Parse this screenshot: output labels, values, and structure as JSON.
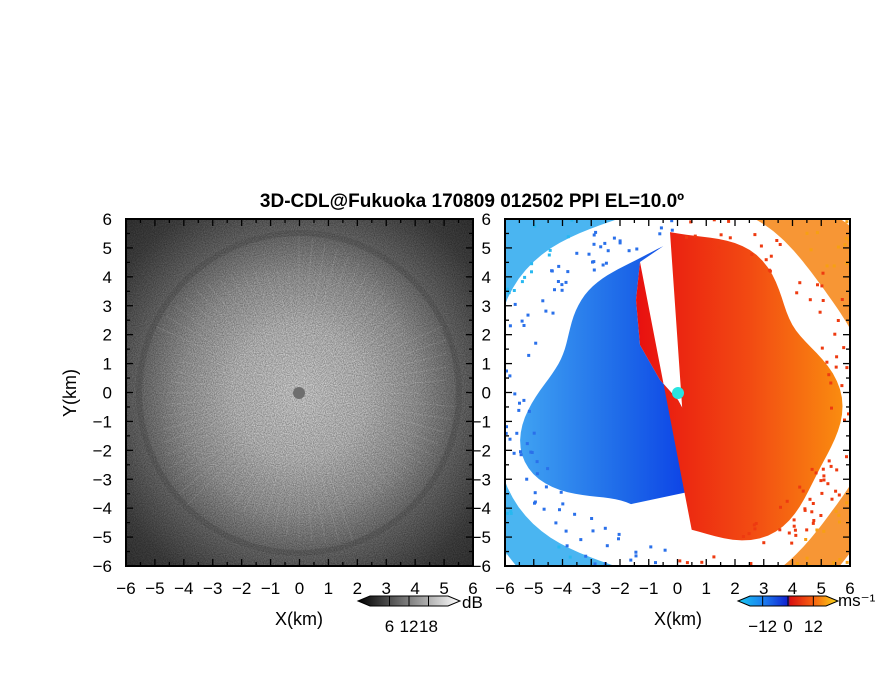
{
  "title": "3D-CDL@Fukuoka 170809 012502 PPI EL=10.0º",
  "chart_data": [
    {
      "type": "heatmap",
      "variable": "reflectivity",
      "xlabel": "X(km)",
      "ylabel": "Y(km)",
      "xlim": [
        -6,
        6
      ],
      "ylim": [
        -6,
        6
      ],
      "xticks": [
        "−6",
        "−5",
        "−4",
        "−3",
        "−2",
        "−1",
        "0",
        "1",
        "2",
        "3",
        "4",
        "5",
        "6"
      ],
      "yticks": [
        "6",
        "5",
        "4",
        "3",
        "2",
        "1",
        "0",
        "−1",
        "−2",
        "−3",
        "−4",
        "−5",
        "−6"
      ],
      "colorscale": "grayscale",
      "colorbar": {
        "unit": "dB",
        "ticks": [
          "6",
          "12",
          "18"
        ],
        "range": [
          0,
          24
        ]
      }
    },
    {
      "type": "heatmap",
      "variable": "doppler velocity",
      "xlabel": "X(km)",
      "xlim": [
        -6,
        6
      ],
      "ylim": [
        -6,
        6
      ],
      "xticks": [
        "−6",
        "−5",
        "−4",
        "−3",
        "−2",
        "−1",
        "0",
        "1",
        "2",
        "3",
        "4",
        "5",
        "6"
      ],
      "yticks": [
        "6",
        "5",
        "4",
        "3",
        "2",
        "1",
        "0",
        "−1",
        "−2",
        "−3",
        "−4",
        "−5",
        "−6"
      ],
      "colorscale": "blue-red diverging",
      "colorbar": {
        "unit": "ms⁻¹",
        "ticks": [
          "−12",
          "0",
          "12"
        ],
        "range": [
          -18,
          18
        ]
      }
    }
  ]
}
